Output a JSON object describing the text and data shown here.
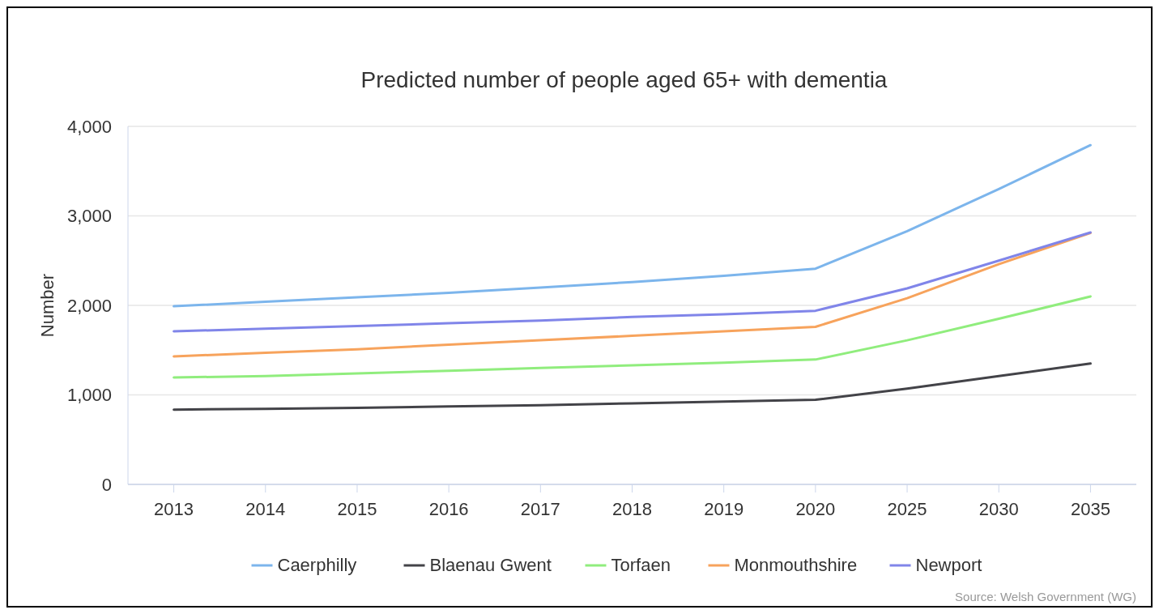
{
  "chart_data": {
    "type": "line",
    "title": "Predicted number of people aged 65+ with dementia",
    "ylabel": "Number",
    "categories": [
      "2013",
      "2014",
      "2015",
      "2016",
      "2017",
      "2018",
      "2019",
      "2020",
      "2025",
      "2030",
      "2035"
    ],
    "series": [
      {
        "name": "Caerphilly",
        "color": "#7cb5ec",
        "values": [
          1990,
          2040,
          2090,
          2140,
          2200,
          2260,
          2330,
          2410,
          2830,
          3300,
          3790
        ]
      },
      {
        "name": "Blaenau Gwent",
        "color": "#434348",
        "values": [
          835,
          845,
          855,
          870,
          885,
          905,
          925,
          945,
          1070,
          1210,
          1350
        ]
      },
      {
        "name": "Torfaen",
        "color": "#90ed7d",
        "values": [
          1195,
          1210,
          1240,
          1270,
          1300,
          1330,
          1360,
          1395,
          1610,
          1850,
          2100
        ]
      },
      {
        "name": "Monmouthshire",
        "color": "#f7a35c",
        "values": [
          1430,
          1470,
          1510,
          1560,
          1610,
          1660,
          1710,
          1760,
          2080,
          2460,
          2810
        ]
      },
      {
        "name": "Newport",
        "color": "#8085e9",
        "values": [
          1710,
          1740,
          1770,
          1800,
          1830,
          1870,
          1900,
          1940,
          2190,
          2500,
          2815
        ]
      }
    ],
    "ylim": [
      0,
      4000
    ],
    "yticks": [
      {
        "value": 0,
        "label": "0"
      },
      {
        "value": 1000,
        "label": "1,000"
      },
      {
        "value": 2000,
        "label": "2,000"
      },
      {
        "value": 3000,
        "label": "3,000"
      },
      {
        "value": 4000,
        "label": "4,000"
      }
    ],
    "grid": "y",
    "legend": "bottom",
    "marker": "none",
    "line_style": "solid",
    "annotations": [
      "Source: Welsh Government (WG)"
    ]
  }
}
